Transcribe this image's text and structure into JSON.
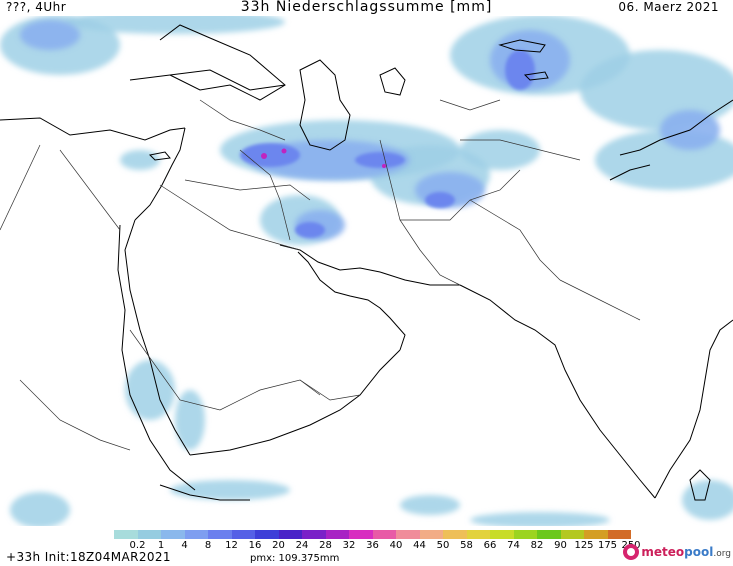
{
  "header": {
    "left": "???, 4Uhr",
    "title": "33h Niederschlagssumme [mm]",
    "right": "06. Maerz 2021"
  },
  "legend": {
    "labels": [
      "0.2",
      "1",
      "4",
      "8",
      "12",
      "16",
      "20",
      "24",
      "28",
      "32",
      "36",
      "40",
      "44",
      "50",
      "58",
      "66",
      "74",
      "82",
      "90",
      "125",
      "175",
      "250"
    ],
    "colors": [
      "#a8dcdc",
      "#96cce0",
      "#8ab8ec",
      "#7e9ef0",
      "#6b7fee",
      "#5560e6",
      "#3e3fd8",
      "#4a22c8",
      "#7a20c8",
      "#a822c4",
      "#d82ec0",
      "#e85aa6",
      "#f08c9a",
      "#f2ac86",
      "#eebf58",
      "#e2d23e",
      "#c8dc28",
      "#9cd420",
      "#6cc81c",
      "#b4c820",
      "#d49e24",
      "#d26c28"
    ]
  },
  "footer": {
    "init": "+33h Init:18Z04MAR2021",
    "pmx": "pmx: 109.375mm"
  },
  "brand": {
    "part1": "meteo",
    "part2": "pool",
    "part3": ".org"
  },
  "map_layers": {
    "coastline_color": "#000000",
    "border_color": "#333333",
    "precip_colors": [
      "#b4e4e4",
      "#9fd0e6",
      "#8ab0ee",
      "#6c86ee",
      "#5058e2",
      "#3c36cc",
      "#c024c0"
    ]
  }
}
